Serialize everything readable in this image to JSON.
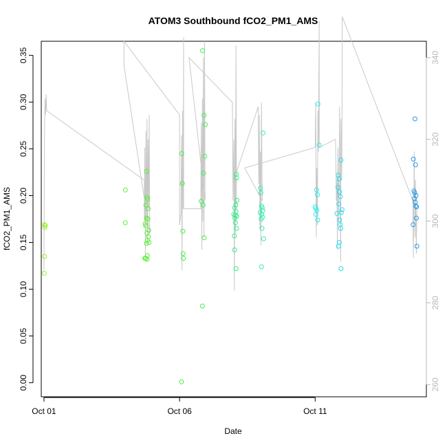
{
  "chart_data": {
    "type": "scatter",
    "title": "ATOM3 Southbound fCO2_PM1_AMS",
    "xlabel": "Date",
    "ylabel": "fCO2_PM1_AMS",
    "x_ticks": [
      "Oct 01",
      "Oct 06",
      "Oct 11"
    ],
    "y_ticks": [
      "0.00",
      "0.05",
      "0.10",
      "0.15",
      "0.20",
      "0.25",
      "0.30",
      "0.35"
    ],
    "y2_ticks": [
      "260",
      "280",
      "300",
      "320",
      "340"
    ],
    "xlim": [
      0.9,
      15.1
    ],
    "ylim": [
      -0.015,
      0.365
    ],
    "y2lim": [
      257,
      344
    ],
    "colors": {
      "axis": "#000000",
      "secondary_axis": "#b8b8b8",
      "line": "#c8c8c8"
    },
    "series": [
      {
        "kind": "points",
        "encoding": "marker color follows time (yellow-green to blue)",
        "points": [
          {
            "x": 1.02,
            "y": 0.169,
            "color": "#99ee22"
          },
          {
            "x": 1.03,
            "y": 0.166,
            "color": "#99ee22"
          },
          {
            "x": 1.05,
            "y": 0.168,
            "color": "#99ee22"
          },
          {
            "x": 1.02,
            "y": 0.135,
            "color": "#99ee22"
          },
          {
            "x": 1.01,
            "y": 0.117,
            "color": "#99ee22"
          },
          {
            "x": 4.0,
            "y": 0.206,
            "color": "#66ee33"
          },
          {
            "x": 4.0,
            "y": 0.171,
            "color": "#66ee33"
          },
          {
            "x": 4.78,
            "y": 0.226,
            "color": "#55ee33"
          },
          {
            "x": 4.8,
            "y": 0.198,
            "color": "#55ee33"
          },
          {
            "x": 4.82,
            "y": 0.196,
            "color": "#55ee33"
          },
          {
            "x": 4.76,
            "y": 0.19,
            "color": "#55ee33"
          },
          {
            "x": 4.84,
            "y": 0.186,
            "color": "#55ee33"
          },
          {
            "x": 4.79,
            "y": 0.176,
            "color": "#55ee33"
          },
          {
            "x": 4.83,
            "y": 0.175,
            "color": "#55ee33"
          },
          {
            "x": 4.73,
            "y": 0.17,
            "color": "#55ee33"
          },
          {
            "x": 4.75,
            "y": 0.168,
            "color": "#55ee33"
          },
          {
            "x": 4.86,
            "y": 0.163,
            "color": "#55ee33"
          },
          {
            "x": 4.8,
            "y": 0.16,
            "color": "#55ee33"
          },
          {
            "x": 4.85,
            "y": 0.156,
            "color": "#55ee33"
          },
          {
            "x": 4.82,
            "y": 0.152,
            "color": "#55ee33"
          },
          {
            "x": 4.87,
            "y": 0.15,
            "color": "#55ee33"
          },
          {
            "x": 4.78,
            "y": 0.149,
            "color": "#55ee33"
          },
          {
            "x": 4.81,
            "y": 0.136,
            "color": "#55ee33"
          },
          {
            "x": 4.75,
            "y": 0.133,
            "color": "#55ee33"
          },
          {
            "x": 4.72,
            "y": 0.133,
            "color": "#55ee33"
          },
          {
            "x": 4.8,
            "y": 0.132,
            "color": "#55ee33"
          },
          {
            "x": 6.08,
            "y": 0.245,
            "color": "#44ee44"
          },
          {
            "x": 6.1,
            "y": 0.213,
            "color": "#44ee44"
          },
          {
            "x": 6.12,
            "y": 0.162,
            "color": "#44ee44"
          },
          {
            "x": 6.13,
            "y": 0.138,
            "color": "#44ee44"
          },
          {
            "x": 6.14,
            "y": 0.133,
            "color": "#44ee44"
          },
          {
            "x": 6.07,
            "y": 0.001,
            "color": "#44ee44"
          },
          {
            "x": 6.85,
            "y": 0.355,
            "color": "#44ee55"
          },
          {
            "x": 6.9,
            "y": 0.286,
            "color": "#44ee55"
          },
          {
            "x": 6.95,
            "y": 0.276,
            "color": "#44ee55"
          },
          {
            "x": 6.93,
            "y": 0.242,
            "color": "#44ee55"
          },
          {
            "x": 6.88,
            "y": 0.224,
            "color": "#44ee55"
          },
          {
            "x": 6.8,
            "y": 0.194,
            "color": "#44ee55"
          },
          {
            "x": 6.87,
            "y": 0.19,
            "color": "#44ee55"
          },
          {
            "x": 6.91,
            "y": 0.155,
            "color": "#44ee55"
          },
          {
            "x": 6.84,
            "y": 0.082,
            "color": "#44ee55"
          },
          {
            "x": 8.09,
            "y": 0.223,
            "color": "#33ee88"
          },
          {
            "x": 8.1,
            "y": 0.219,
            "color": "#33ee88"
          },
          {
            "x": 8.12,
            "y": 0.195,
            "color": "#33ee88"
          },
          {
            "x": 8.07,
            "y": 0.19,
            "color": "#33ee88"
          },
          {
            "x": 8.03,
            "y": 0.187,
            "color": "#33ee88"
          },
          {
            "x": 8.08,
            "y": 0.183,
            "color": "#33ee88"
          },
          {
            "x": 8.0,
            "y": 0.18,
            "color": "#33ee88"
          },
          {
            "x": 8.05,
            "y": 0.179,
            "color": "#33ee88"
          },
          {
            "x": 8.11,
            "y": 0.178,
            "color": "#33ee88"
          },
          {
            "x": 8.04,
            "y": 0.176,
            "color": "#33ee88"
          },
          {
            "x": 8.06,
            "y": 0.171,
            "color": "#33ee88"
          },
          {
            "x": 8.1,
            "y": 0.165,
            "color": "#33ee88"
          },
          {
            "x": 8.02,
            "y": 0.157,
            "color": "#33ee88"
          },
          {
            "x": 8.03,
            "y": 0.142,
            "color": "#33ee88"
          },
          {
            "x": 8.08,
            "y": 0.122,
            "color": "#33ee88"
          },
          {
            "x": 9.08,
            "y": 0.267,
            "color": "#33eeaa"
          },
          {
            "x": 8.98,
            "y": 0.208,
            "color": "#33eeaa"
          },
          {
            "x": 9.0,
            "y": 0.203,
            "color": "#33eeaa"
          },
          {
            "x": 9.02,
            "y": 0.189,
            "color": "#33eeaa"
          },
          {
            "x": 9.05,
            "y": 0.187,
            "color": "#33eeaa"
          },
          {
            "x": 9.07,
            "y": 0.184,
            "color": "#33eeaa"
          },
          {
            "x": 8.97,
            "y": 0.182,
            "color": "#33eeaa"
          },
          {
            "x": 9.03,
            "y": 0.18,
            "color": "#33eeaa"
          },
          {
            "x": 9.06,
            "y": 0.177,
            "color": "#33eeaa"
          },
          {
            "x": 9.01,
            "y": 0.175,
            "color": "#33eeaa"
          },
          {
            "x": 9.04,
            "y": 0.165,
            "color": "#33eeaa"
          },
          {
            "x": 9.1,
            "y": 0.154,
            "color": "#33eeaa"
          },
          {
            "x": 9.02,
            "y": 0.124,
            "color": "#33eeaa"
          },
          {
            "x": 11.1,
            "y": 0.298,
            "color": "#22eeee"
          },
          {
            "x": 11.15,
            "y": 0.254,
            "color": "#22eeee"
          },
          {
            "x": 11.05,
            "y": 0.206,
            "color": "#22eeee"
          },
          {
            "x": 11.08,
            "y": 0.201,
            "color": "#22eeee"
          },
          {
            "x": 11.0,
            "y": 0.188,
            "color": "#22eeee"
          },
          {
            "x": 11.03,
            "y": 0.186,
            "color": "#22eeee"
          },
          {
            "x": 11.06,
            "y": 0.184,
            "color": "#22eeee"
          },
          {
            "x": 11.02,
            "y": 0.18,
            "color": "#22eeee"
          },
          {
            "x": 11.09,
            "y": 0.174,
            "color": "#22eeee"
          },
          {
            "x": 11.95,
            "y": 0.238,
            "color": "#22ddee"
          },
          {
            "x": 11.85,
            "y": 0.222,
            "color": "#22ddee"
          },
          {
            "x": 11.88,
            "y": 0.218,
            "color": "#22ddee"
          },
          {
            "x": 11.84,
            "y": 0.209,
            "color": "#22ddee"
          },
          {
            "x": 11.9,
            "y": 0.204,
            "color": "#22ddee"
          },
          {
            "x": 11.93,
            "y": 0.199,
            "color": "#22ddee"
          },
          {
            "x": 11.87,
            "y": 0.191,
            "color": "#22ddee"
          },
          {
            "x": 11.99,
            "y": 0.185,
            "color": "#22ddee"
          },
          {
            "x": 11.96,
            "y": 0.182,
            "color": "#22ddee"
          },
          {
            "x": 11.8,
            "y": 0.181,
            "color": "#22ddee"
          },
          {
            "x": 11.9,
            "y": 0.174,
            "color": "#22ddee"
          },
          {
            "x": 11.92,
            "y": 0.169,
            "color": "#22ddee"
          },
          {
            "x": 11.94,
            "y": 0.165,
            "color": "#22ddee"
          },
          {
            "x": 11.89,
            "y": 0.15,
            "color": "#22ddee"
          },
          {
            "x": 11.86,
            "y": 0.146,
            "color": "#22ddee"
          },
          {
            "x": 11.95,
            "y": 0.122,
            "color": "#22ddee"
          },
          {
            "x": 14.68,
            "y": 0.282,
            "color": "#2299ee"
          },
          {
            "x": 14.62,
            "y": 0.239,
            "color": "#2299ee"
          },
          {
            "x": 14.7,
            "y": 0.233,
            "color": "#2299ee"
          },
          {
            "x": 14.64,
            "y": 0.205,
            "color": "#2299ee"
          },
          {
            "x": 14.67,
            "y": 0.203,
            "color": "#2299ee"
          },
          {
            "x": 14.72,
            "y": 0.2,
            "color": "#2299ee"
          },
          {
            "x": 14.66,
            "y": 0.197,
            "color": "#2299ee"
          },
          {
            "x": 14.69,
            "y": 0.193,
            "color": "#2299ee"
          },
          {
            "x": 14.71,
            "y": 0.189,
            "color": "#2299ee"
          },
          {
            "x": 14.74,
            "y": 0.188,
            "color": "#2299ee"
          },
          {
            "x": 14.73,
            "y": 0.176,
            "color": "#2299ee"
          },
          {
            "x": 14.61,
            "y": 0.169,
            "color": "#2299ee"
          },
          {
            "x": 14.75,
            "y": 0.146,
            "color": "#2299ee"
          }
        ]
      },
      {
        "kind": "line",
        "axis": "right",
        "color": "#c8c8c8",
        "points": [
          [
            1.0,
            288
          ],
          [
            1.02,
            322
          ],
          [
            1.04,
            330
          ],
          [
            1.06,
            326
          ],
          [
            1.08,
            331
          ],
          [
            1.1,
            327
          ],
          [
            4.7,
            310
          ],
          [
            4.7,
            300
          ],
          [
            4.72,
            318
          ],
          [
            4.74,
            292
          ],
          [
            4.76,
            322
          ],
          [
            4.78,
            300
          ],
          [
            4.8,
            325
          ],
          [
            4.82,
            295
          ],
          [
            4.84,
            320
          ],
          [
            4.86,
            303
          ],
          [
            4.88,
            326
          ],
          [
            4.9,
            297
          ],
          [
            3.95,
            338
          ],
          [
            3.95,
            344
          ],
          [
            6.0,
            326
          ],
          [
            6.0,
            299
          ],
          [
            6.05,
            302
          ],
          [
            6.07,
            321
          ],
          [
            6.09,
            288
          ],
          [
            6.11,
            327
          ],
          [
            6.13,
            303
          ],
          [
            6.15,
            345
          ],
          [
            6.15,
            303
          ],
          [
            6.78,
            303
          ],
          [
            6.8,
            324
          ],
          [
            6.82,
            293
          ],
          [
            6.84,
            330
          ],
          [
            6.86,
            300
          ],
          [
            6.88,
            340
          ],
          [
            6.9,
            296
          ],
          [
            6.92,
            344
          ],
          [
            6.94,
            305
          ],
          [
            6.35,
            340
          ],
          [
            7.95,
            329
          ],
          [
            7.97,
            305
          ],
          [
            8.0,
            320
          ],
          [
            8.02,
            283
          ],
          [
            8.04,
            325
          ],
          [
            8.06,
            297
          ],
          [
            8.08,
            343
          ],
          [
            8.1,
            304
          ],
          [
            8.1,
            312
          ],
          [
            8.9,
            328
          ],
          [
            8.92,
            309
          ],
          [
            8.94,
            326
          ],
          [
            8.96,
            298
          ],
          [
            8.98,
            317
          ],
          [
            9.0,
            294
          ],
          [
            9.02,
            329
          ],
          [
            9.05,
            305
          ],
          [
            8.4,
            313
          ],
          [
            11.0,
            318
          ],
          [
            11.02,
            329
          ],
          [
            11.04,
            296
          ],
          [
            11.06,
            313
          ],
          [
            11.08,
            299
          ],
          [
            11.1,
            327
          ],
          [
            11.12,
            317
          ],
          [
            11.15,
            349
          ],
          [
            11.15,
            318
          ],
          [
            11.75,
            320
          ],
          [
            11.78,
            305
          ],
          [
            11.8,
            310
          ],
          [
            11.82,
            293
          ],
          [
            11.84,
            318
          ],
          [
            11.87,
            300
          ],
          [
            11.9,
            328
          ],
          [
            11.94,
            290
          ],
          [
            11.95,
            325
          ],
          [
            11.98,
            310
          ],
          [
            12.0,
            350
          ],
          [
            14.6,
            305
          ],
          [
            14.62,
            291
          ],
          [
            14.65,
            317
          ],
          [
            14.68,
            296
          ],
          [
            14.7,
            310
          ],
          [
            14.73,
            292
          ],
          [
            14.75,
            303
          ]
        ]
      }
    ]
  }
}
